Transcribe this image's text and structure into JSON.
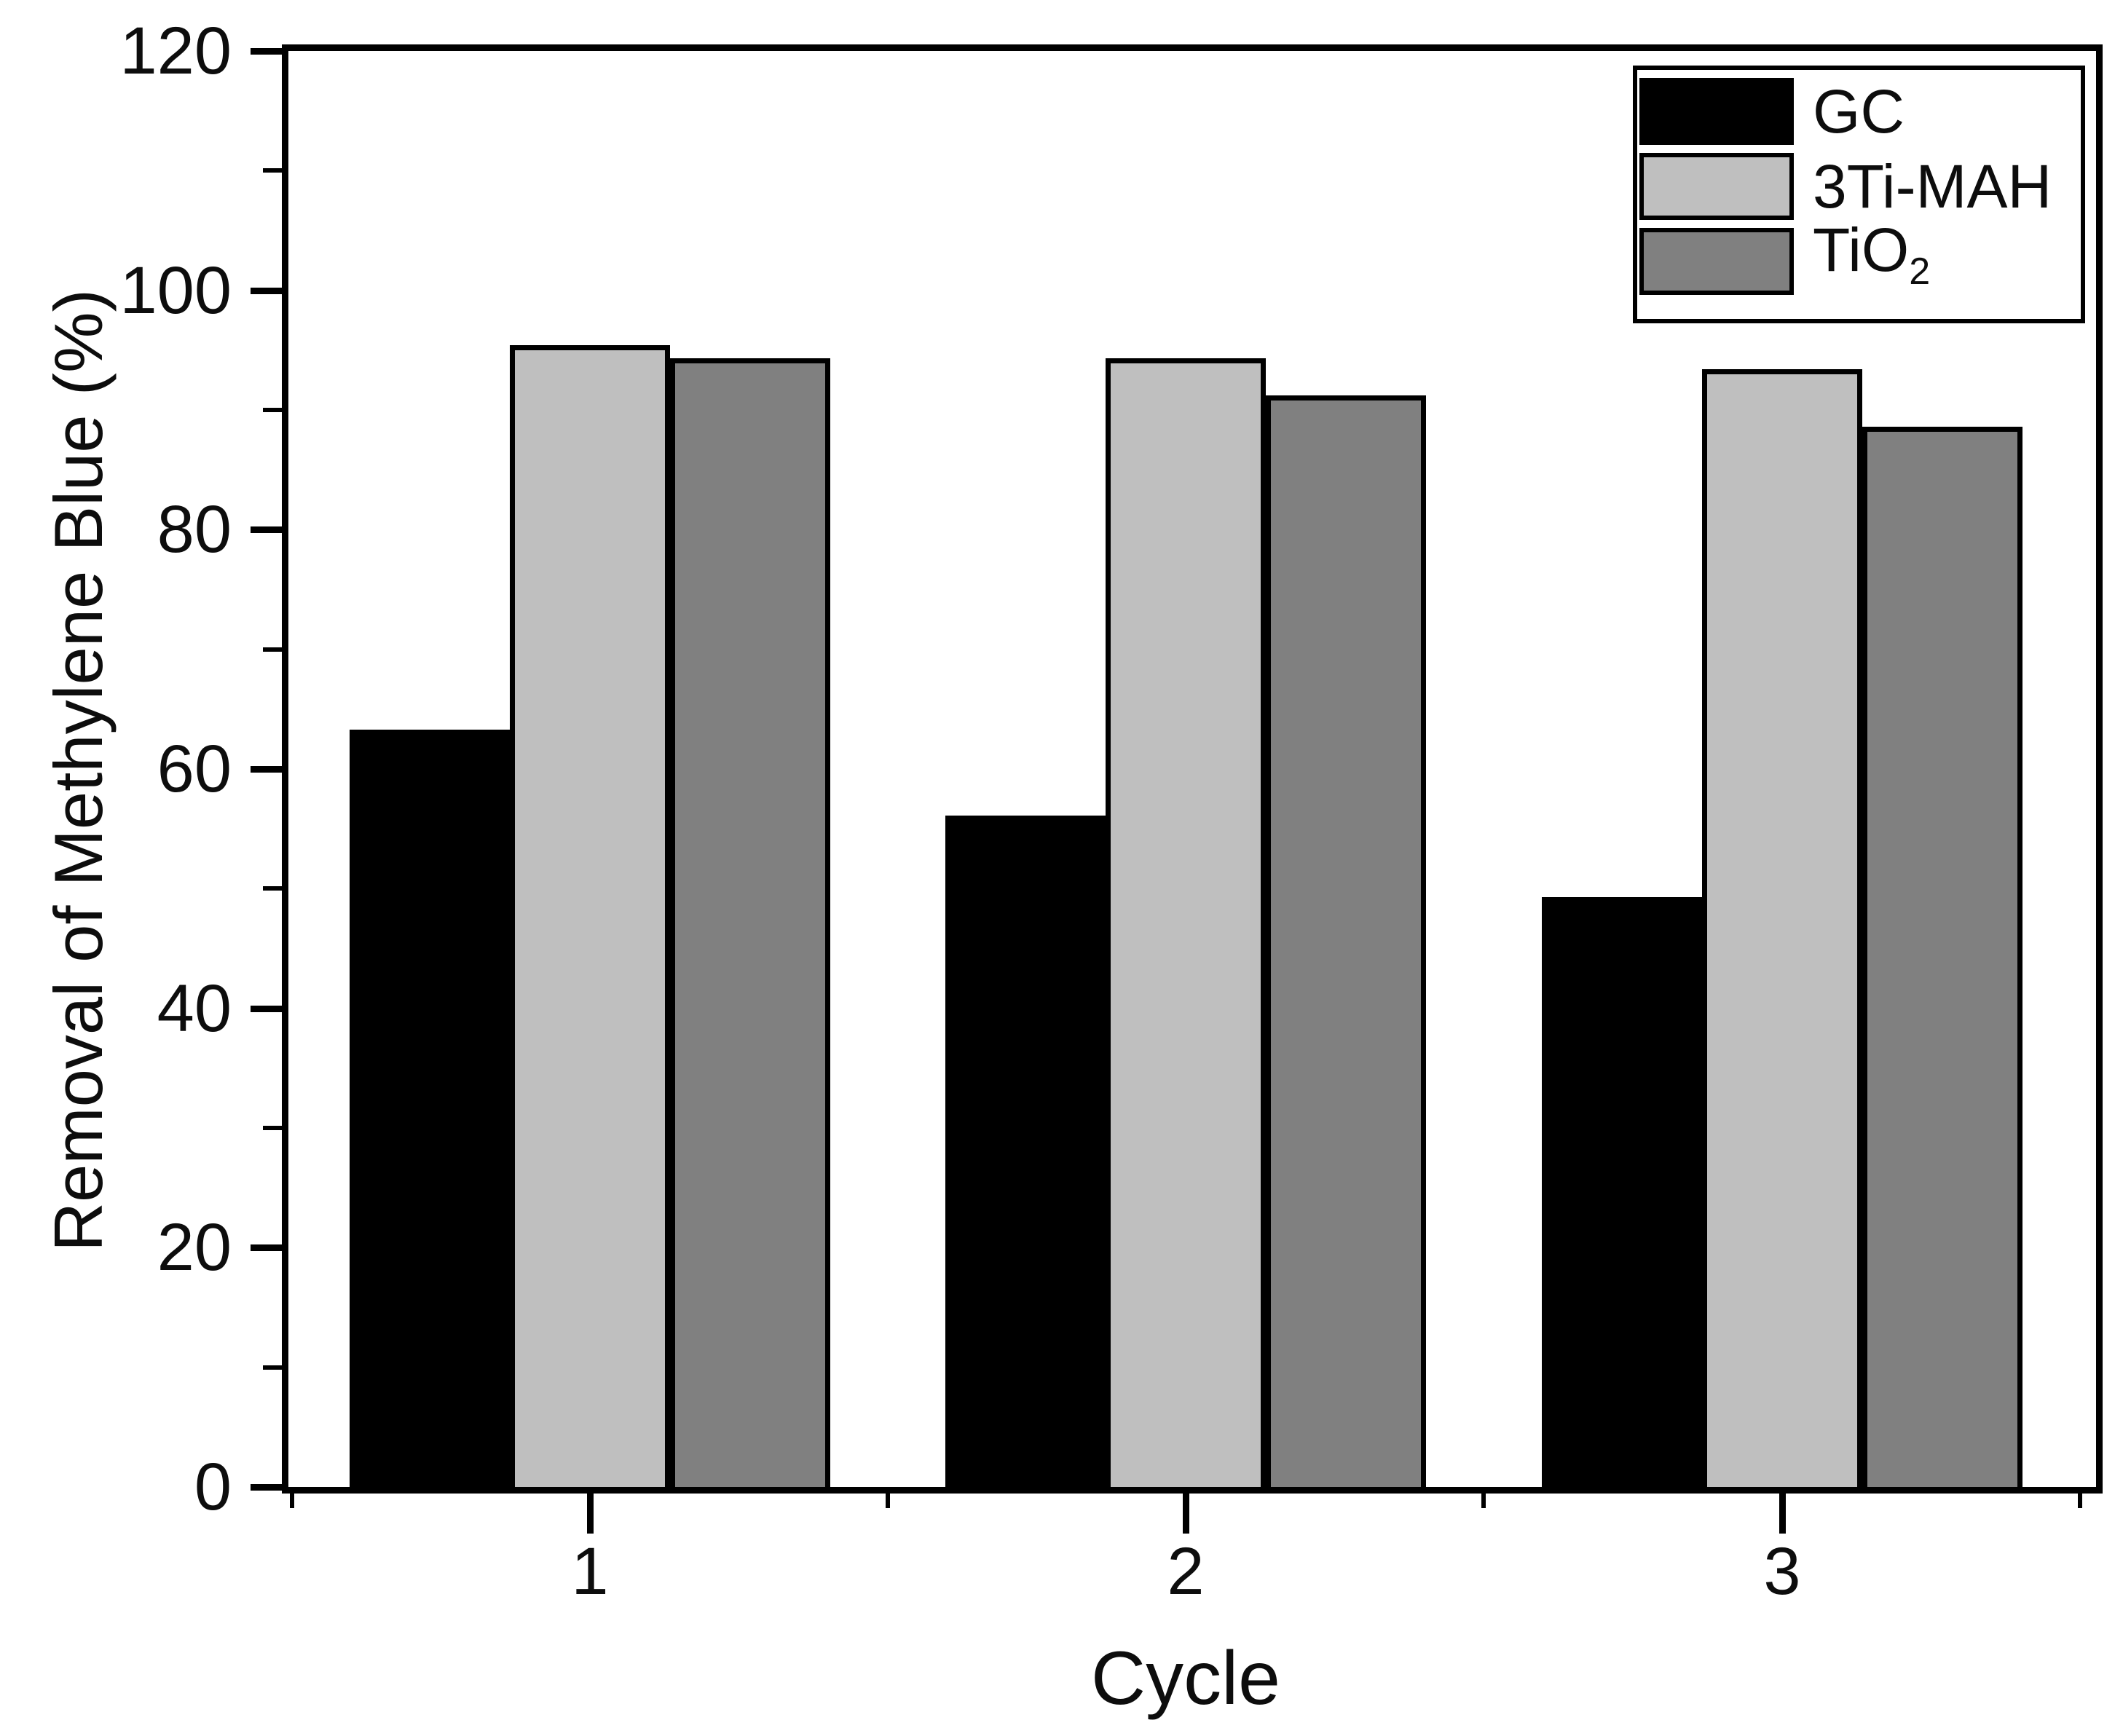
{
  "chart_data": {
    "type": "bar",
    "title": "",
    "xlabel": "Cycle",
    "ylabel": "Removal of Methylene Blue (%)",
    "categories": [
      "1",
      "2",
      "3"
    ],
    "series": [
      {
        "name": "GC",
        "color": "#000000",
        "values": [
          63.3,
          56.1,
          49.3
        ]
      },
      {
        "name": "3Ti-MAH",
        "color": "#bfbfbf",
        "values": [
          95.4,
          94.3,
          93.4
        ]
      },
      {
        "name": "TiO2",
        "color": "#808080",
        "values": [
          94.3,
          91.2,
          88.6
        ]
      }
    ],
    "legend": [
      {
        "text": "GC",
        "sub": ""
      },
      {
        "text": "3Ti-MAH",
        "sub": ""
      },
      {
        "text": "TiO",
        "sub": "2"
      }
    ],
    "ylim": [
      0,
      120
    ],
    "y_major_ticks": [
      0,
      20,
      40,
      60,
      80,
      100,
      120
    ],
    "y_minor_step": 10,
    "bar_outline": "#000000",
    "grid": false,
    "legend_position": "top-right",
    "frame": "full-box"
  }
}
